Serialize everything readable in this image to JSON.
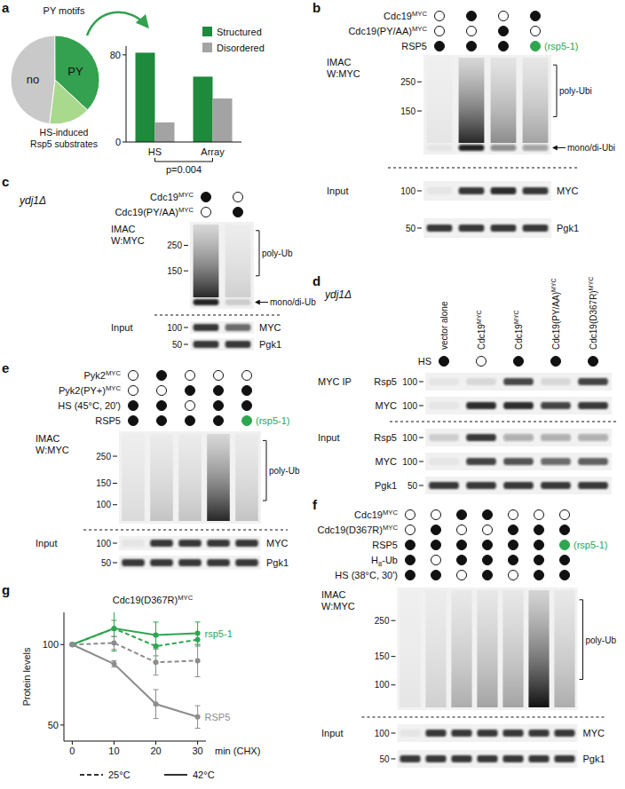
{
  "letters": [
    "a",
    "b",
    "c",
    "d",
    "e",
    "f",
    "g"
  ],
  "chart_data": [
    {
      "type": "pie",
      "title": "PY motifs",
      "categories": [
        "no",
        "PY",
        "HS-induced Rsp5 substrates"
      ],
      "values": [
        48,
        37,
        15
      ],
      "colors": [
        "#c9c9c9",
        "#33a14f",
        "#a9d98c"
      ]
    },
    {
      "type": "bar",
      "categories": [
        "HS",
        "Array"
      ],
      "series": [
        {
          "name": "Structured",
          "color": "#1e8a3c",
          "values": [
            82,
            60
          ]
        },
        {
          "name": "Disordered",
          "color": "#a3a3a3",
          "values": [
            18,
            40
          ]
        }
      ],
      "ylim": [
        0,
        88
      ],
      "yticks": [
        0,
        80
      ],
      "legend": "top-right",
      "grid": false,
      "annotations": [
        "p=0.004"
      ]
    },
    {
      "type": "line",
      "title": [
        "Cdc19(D367R)",
        {
          "sup": "MYC"
        }
      ],
      "x": [
        0,
        10,
        20,
        30
      ],
      "xlim": [
        -2,
        32
      ],
      "xticks": [
        0,
        10,
        20,
        30
      ],
      "ylim": [
        40,
        120
      ],
      "yticks": [
        50,
        100
      ],
      "x_label": "min (CHX)",
      "y_label": "Protein levels",
      "marker": "circle",
      "legend": "bottom",
      "grid": false,
      "series": [
        {
          "name": "25°C",
          "line_style": "dashed",
          "color": "#2ea64f",
          "values": [
            100,
            110,
            99,
            103
          ],
          "errors": [
            0,
            5,
            6,
            4
          ]
        },
        {
          "name": "42°C",
          "line_style": "solid",
          "color": "#2ea64f",
          "values": [
            100,
            110,
            106,
            107
          ],
          "errors": [
            0,
            14,
            8,
            7
          ]
        },
        {
          "name": "25°C",
          "line_style": "dashed",
          "color": "#8c8c8c",
          "values": [
            100,
            101,
            89,
            90
          ],
          "errors": [
            0,
            4,
            8,
            10
          ]
        },
        {
          "name": "42°C",
          "line_style": "solid",
          "color": "#8c8c8c",
          "values": [
            100,
            88,
            63,
            55
          ],
          "errors": [
            0,
            2,
            9,
            7
          ]
        }
      ],
      "annotations": [
        {
          "text": "rsp5-1",
          "color": "#2ea64f"
        },
        {
          "text": "RSP5",
          "color": "#8c8c8c"
        }
      ]
    }
  ],
  "blot_panels": [
    {
      "rows": [
        {
          "label": [
            "Cdc19",
            {
              "sup": "MYC"
            }
          ],
          "lanes": [
            false,
            true,
            false,
            true
          ]
        },
        {
          "label": [
            "Cdc19(PY/AA)",
            {
              "sup": "MYC"
            }
          ],
          "lanes": [
            false,
            false,
            true,
            false
          ]
        },
        {
          "label": "RSP5",
          "lanes": [
            true,
            true,
            true,
            true
          ],
          "mutant_lane": 3,
          "mutant_label": "(rsp5-1)"
        }
      ],
      "sections": [
        {
          "label": [
            "IMAC",
            "W:MYC"
          ],
          "blots": [
            {
              "kind": "smear",
              "markers": [
                250,
                150
              ],
              "intensity": [
                0.05,
                0.9,
                0.45,
                0.35
              ],
              "labels": [
                {
                  "text": "poly-Ubi",
                  "style": "bracket"
                },
                {
                  "text": "mono/di-Ubi",
                  "style": "arrow"
                }
              ]
            }
          ]
        },
        {
          "label": [
            "Input"
          ],
          "blots": [
            {
              "kind": "band",
              "name": "MYC",
              "markers": [
                100
              ],
              "intensity": [
                0.05,
                0.85,
                0.9,
                0.85
              ]
            },
            {
              "kind": "band",
              "name": "Pgk1",
              "markers": [
                50
              ],
              "intensity": [
                0.85,
                0.85,
                0.85,
                0.85
              ]
            }
          ]
        }
      ]
    },
    {
      "strain": "ydj1Δ",
      "rows": [
        {
          "label": [
            "Cdc19",
            {
              "sup": "MYC"
            }
          ],
          "lanes": [
            true,
            false
          ]
        },
        {
          "label": [
            "Cdc19(PY/AA)",
            {
              "sup": "MYC"
            }
          ],
          "lanes": [
            false,
            true
          ]
        }
      ],
      "sections": [
        {
          "label": [
            "IMAC",
            "W:MYC"
          ],
          "blots": [
            {
              "kind": "smear",
              "markers": [
                250,
                150
              ],
              "intensity": [
                0.9,
                0.15
              ],
              "labels": [
                {
                  "text": "poly-Ub",
                  "style": "bracket"
                },
                {
                  "text": "mono/di-Ub",
                  "style": "arrow"
                }
              ]
            }
          ]
        },
        {
          "label": [
            "Input"
          ],
          "blots": [
            {
              "kind": "band",
              "name": "MYC",
              "markers": [
                100
              ],
              "intensity": [
                0.85,
                0.6
              ]
            },
            {
              "kind": "band",
              "name": "Pgk1",
              "markers": [
                50
              ],
              "intensity": [
                0.85,
                0.85
              ]
            }
          ]
        }
      ]
    },
    {
      "strain": "ydj1Δ",
      "columns": [
        "vector alone",
        [
          "Cdc19",
          {
            "sup": "MYC"
          }
        ],
        [
          "Cdc19",
          {
            "sup": "MYC"
          }
        ],
        [
          "Cdc19(PY/AA)",
          {
            "sup": "MYC"
          }
        ],
        [
          "Cdc19(D367R)",
          {
            "sup": "MYC"
          }
        ]
      ],
      "rows": [
        {
          "label": "HS",
          "lanes": [
            true,
            false,
            true,
            true,
            true
          ]
        }
      ],
      "sections": [
        {
          "label": [
            "MYC IP"
          ],
          "blots": [
            {
              "kind": "band",
              "name": "Rsp5",
              "markers": [
                100
              ],
              "intensity": [
                0.05,
                0.1,
                0.75,
                0.1,
                0.8
              ]
            },
            {
              "kind": "band",
              "name": "MYC",
              "markers": [
                100
              ],
              "intensity": [
                0.05,
                0.9,
                0.9,
                0.8,
                0.85
              ]
            }
          ]
        },
        {
          "label": [
            "Input"
          ],
          "blots": [
            {
              "kind": "band",
              "name": "Rsp5",
              "markers": [
                100
              ],
              "intensity": [
                0.15,
                0.85,
                0.3,
                0.3,
                0.3
              ]
            },
            {
              "kind": "band",
              "name": "MYC",
              "markers": [
                100
              ],
              "intensity": [
                0.05,
                0.8,
                0.7,
                0.6,
                0.65
              ]
            },
            {
              "kind": "band",
              "name": "Pgk1",
              "markers": [
                50
              ],
              "intensity": [
                0.85,
                0.85,
                0.85,
                0.85,
                0.85
              ]
            }
          ]
        }
      ]
    },
    {
      "rows": [
        {
          "label": [
            "Pyk2",
            {
              "sup": "MYC"
            }
          ],
          "lanes": [
            false,
            true,
            false,
            false,
            false
          ]
        },
        {
          "label": [
            "Pyk2(PY+)",
            {
              "sup": "MYC"
            }
          ],
          "lanes": [
            false,
            false,
            true,
            true,
            true
          ]
        },
        {
          "label": "HS (45°C, 20')",
          "lanes": [
            true,
            true,
            false,
            true,
            true
          ]
        },
        {
          "label": "RSP5",
          "lanes": [
            true,
            true,
            true,
            true,
            true
          ],
          "mutant_lane": 4,
          "mutant_label": "(rsp5-1)"
        }
      ],
      "sections": [
        {
          "label": [
            "IMAC",
            "W:MYC"
          ],
          "blots": [
            {
              "kind": "smear",
              "markers": [
                250,
                150,
                100
              ],
              "intensity": [
                0.1,
                0.2,
                0.2,
                0.9,
                0.2
              ],
              "labels": [
                {
                  "text": "poly-Ub",
                  "style": "bracket"
                }
              ]
            }
          ]
        },
        {
          "label": [
            "Input"
          ],
          "blots": [
            {
              "kind": "band",
              "name": "MYC",
              "markers": [
                100
              ],
              "intensity": [
                0.05,
                0.85,
                0.85,
                0.85,
                0.85
              ]
            },
            {
              "kind": "band",
              "name": "Pgk1",
              "markers": [
                50
              ],
              "intensity": [
                0.85,
                0.85,
                0.85,
                0.85,
                0.85
              ]
            }
          ]
        }
      ]
    },
    {
      "rows": [
        {
          "label": [
            "Cdc19",
            {
              "sup": "MYC"
            }
          ],
          "lanes": [
            false,
            false,
            true,
            true,
            false,
            false,
            false
          ]
        },
        {
          "label": [
            "Cdc19(D367R)",
            {
              "sup": "MYC"
            }
          ],
          "lanes": [
            false,
            true,
            false,
            false,
            true,
            true,
            true
          ]
        },
        {
          "label": "RSP5",
          "lanes": [
            true,
            true,
            true,
            true,
            true,
            true,
            true
          ],
          "mutant_lane": 6,
          "mutant_label": "(rsp5-1)"
        },
        {
          "label": [
            "H",
            {
              "sub": "8"
            },
            "-Ub"
          ],
          "lanes": [
            true,
            false,
            true,
            true,
            true,
            true,
            true
          ]
        },
        {
          "label": "HS (38°C, 30')",
          "lanes": [
            true,
            true,
            false,
            true,
            false,
            true,
            true
          ]
        }
      ],
      "sections": [
        {
          "label": [
            "IMAC",
            "W:MYC"
          ],
          "blots": [
            {
              "kind": "smear",
              "markers": [
                250,
                150,
                100
              ],
              "intensity": [
                0.05,
                0.15,
                0.3,
                0.35,
                0.35,
                1.0,
                0.3
              ],
              "labels": [
                {
                  "text": "poly-Ub",
                  "style": "bracket"
                }
              ]
            }
          ]
        },
        {
          "label": [
            "Input"
          ],
          "blots": [
            {
              "kind": "band",
              "name": "MYC",
              "markers": [
                100
              ],
              "intensity": [
                0.05,
                0.85,
                0.85,
                0.85,
                0.85,
                0.85,
                0.85
              ]
            },
            {
              "kind": "band",
              "name": "Pgk1",
              "markers": [
                50
              ],
              "intensity": [
                0.85,
                0.85,
                0.85,
                0.85,
                0.85,
                0.85,
                0.85
              ]
            }
          ]
        }
      ]
    }
  ]
}
